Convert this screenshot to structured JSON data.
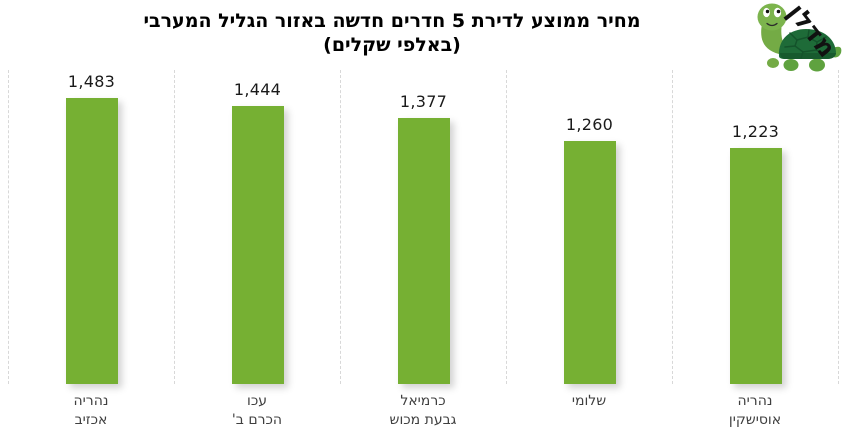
{
  "title": {
    "line1": "מחיר ממוצע לדירת 5 חדרים חדשה באזור הגליל המערבי",
    "line2": "(באלפי שקלים)"
  },
  "logo": {
    "brand": "מדלן"
  },
  "colors": {
    "bar_green": "#76B033",
    "gridline": "#D8D8D8",
    "value_text": "#1A1A1A",
    "category_text": "#3F3F3F",
    "title_text": "#000000",
    "turtle_body": "#74AB45",
    "turtle_shell": "#1E6B38"
  },
  "chart_data": {
    "type": "bar",
    "title": "מחיר ממוצע לדירת 5 חדרים חדשה באזור הגליל המערבי (באלפי שקלים)",
    "categories": [
      "נהריה אכזיב",
      "עכו הכרם ב'",
      "כרמיאל גבעת מכוש",
      "שלומי",
      "נהריה אוסישקין"
    ],
    "values": [
      1483,
      1444,
      1377,
      1260,
      1223
    ],
    "value_labels": [
      "1,483",
      "1,444",
      "1,377",
      "1,260",
      "1,223"
    ],
    "bars": [
      {
        "line1": "נהריה",
        "line2": "אכזיב",
        "value": 1483,
        "value_label": "1,483"
      },
      {
        "line1": "עכו",
        "line2": "הכרם ב'",
        "value": 1444,
        "value_label": "1,444"
      },
      {
        "line1": "כרמיאל",
        "line2": "גבעת מכוש",
        "value": 1377,
        "value_label": "1,377"
      },
      {
        "line1": "שלומי",
        "line2": "",
        "value": 1260,
        "value_label": "1,260"
      },
      {
        "line1": "נהריה",
        "line2": "אוסישקין",
        "value": 1223,
        "value_label": "1,223"
      }
    ],
    "ylim": [
      0,
      1628
    ],
    "grid": "vertical-dashed",
    "legend": false,
    "orientation": "vertical",
    "data_labels": "above-bars"
  }
}
